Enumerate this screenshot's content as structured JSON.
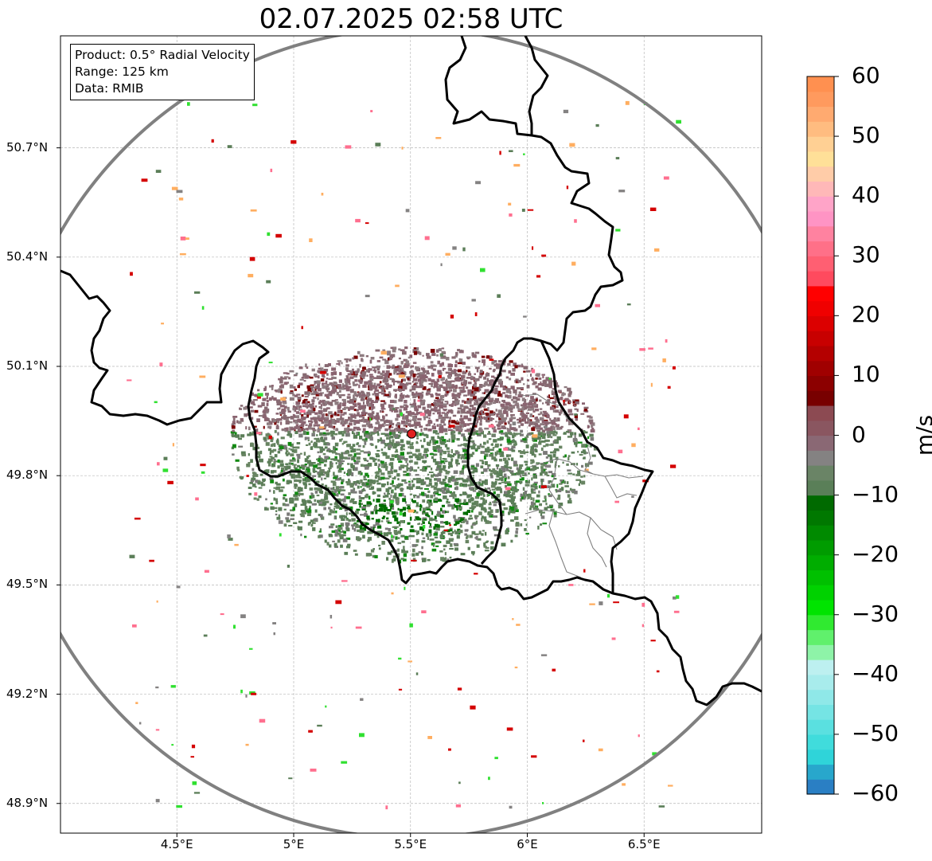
{
  "title": "02.07.2025 02:58 UTC",
  "info": {
    "product": "Product: 0.5° Radial Velocity",
    "range": "Range: 125 km",
    "data": "Data: RMIB"
  },
  "lat_ticks": [
    {
      "label": "50.7°N",
      "value": 50.7
    },
    {
      "label": "50.4°N",
      "value": 50.4
    },
    {
      "label": "50.1°N",
      "value": 50.1
    },
    {
      "label": "49.8°N",
      "value": 49.8
    },
    {
      "label": "49.5°N",
      "value": 49.5
    },
    {
      "label": "49.2°N",
      "value": 49.2
    },
    {
      "label": "48.9°N",
      "value": 48.9
    }
  ],
  "lon_ticks": [
    {
      "label": "4.5°E",
      "value": 4.5
    },
    {
      "label": "5°E",
      "value": 5.0
    },
    {
      "label": "5.5°E",
      "value": 5.5
    },
    {
      "label": "6°E",
      "value": 6.0
    },
    {
      "label": "6.5°E",
      "value": 6.5
    }
  ],
  "map_extent": {
    "lon_min": 4.0,
    "lon_max": 7.0,
    "lat_min": 48.8,
    "lat_max": 50.99
  },
  "radar_site": {
    "lon": 5.505,
    "lat": 49.915
  },
  "colorbar": {
    "unit": "m/s",
    "min": -60,
    "max": 60,
    "ticks": [
      {
        "label": "60",
        "value": 60
      },
      {
        "label": "50",
        "value": 50
      },
      {
        "label": "40",
        "value": 40
      },
      {
        "label": "30",
        "value": 30
      },
      {
        "label": "20",
        "value": 20
      },
      {
        "label": "10",
        "value": 10
      },
      {
        "label": "0",
        "value": 0
      },
      {
        "label": "−10",
        "value": -10
      },
      {
        "label": "−20",
        "value": -20
      },
      {
        "label": "−30",
        "value": -30
      },
      {
        "label": "−40",
        "value": -40
      },
      {
        "label": "−50",
        "value": -50
      },
      {
        "label": "−60",
        "value": -60
      }
    ],
    "colors": [
      "#2a7fc4",
      "#28a7cc",
      "#2fd4d9",
      "#40dcdc",
      "#5ae0e0",
      "#75e4e4",
      "#8fe8e8",
      "#a8ecec",
      "#bdf0f0",
      "#8ef3a8",
      "#60f06c",
      "#30ea30",
      "#00e400",
      "#00d200",
      "#00c000",
      "#00ad00",
      "#009c00",
      "#008a00",
      "#007800",
      "#006a00",
      "#5a7f58",
      "#6a8466",
      "#848282",
      "#8a6874",
      "#8a5660",
      "#8c4a52",
      "#780000",
      "#8c0000",
      "#a00000",
      "#b40000",
      "#c80000",
      "#dc0000",
      "#f00000",
      "#ff0000",
      "#ff4a5e",
      "#ff5f72",
      "#ff7088",
      "#ff82a0",
      "#ff94c4",
      "#ffa4c8",
      "#ffb8b8",
      "#ffcca8",
      "#ffe098",
      "#ffd094",
      "#ffbc80",
      "#ffaa70",
      "#ff9a5e",
      "#ff9050"
    ]
  }
}
